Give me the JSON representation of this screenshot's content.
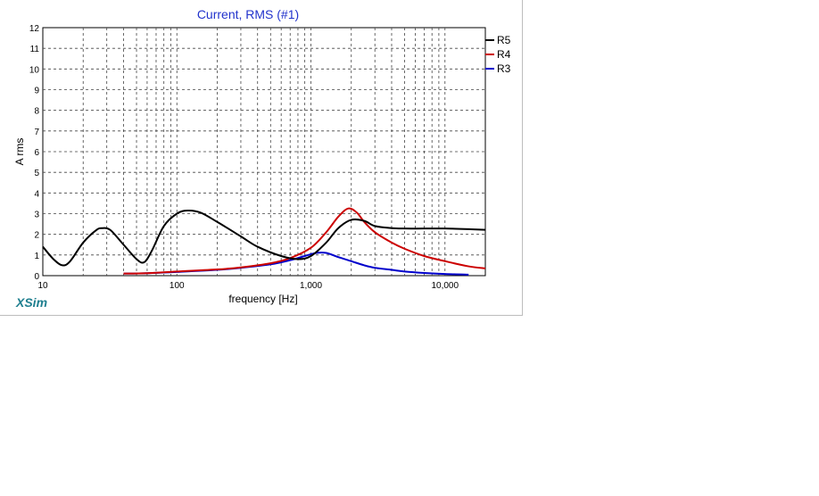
{
  "window": {
    "brand": "XSim"
  },
  "chart_data": {
    "type": "line",
    "title": "Current, RMS (#1)",
    "xlabel": "frequency [Hz]",
    "ylabel": "A rms",
    "xscale": "log",
    "xlim": [
      10,
      20000
    ],
    "ylim": [
      0,
      12
    ],
    "yticks": [
      0,
      1,
      2,
      3,
      4,
      5,
      6,
      7,
      8,
      9,
      10,
      11,
      12
    ],
    "xtick_labels": [
      {
        "value": 10,
        "label": "10"
      },
      {
        "value": 100,
        "label": "100"
      },
      {
        "value": 1000,
        "label": "1,000"
      },
      {
        "value": 10000,
        "label": "10,000"
      }
    ],
    "grid": true,
    "legend_position": "top-right",
    "colors": {
      "title": "#2233cc",
      "R5": "#000000",
      "R4": "#cc0000",
      "R3": "#0000cc"
    },
    "series": [
      {
        "name": "R5",
        "x": [
          10,
          12,
          14,
          16,
          20,
          25,
          28,
          32,
          40,
          50,
          57,
          65,
          80,
          100,
          120,
          150,
          200,
          300,
          400,
          600,
          800,
          1000,
          1300,
          1600,
          2000,
          2500,
          3000,
          4000,
          5000,
          7000,
          10000,
          15000,
          20000
        ],
        "y": [
          1.4,
          0.8,
          0.5,
          0.7,
          1.6,
          2.2,
          2.3,
          2.2,
          1.5,
          0.8,
          0.65,
          1.2,
          2.4,
          3.0,
          3.15,
          3.05,
          2.6,
          1.9,
          1.4,
          0.95,
          0.8,
          0.95,
          1.6,
          2.3,
          2.7,
          2.65,
          2.4,
          2.3,
          2.28,
          2.28,
          2.28,
          2.25,
          2.22
        ]
      },
      {
        "name": "R4",
        "x": [
          40,
          60,
          100,
          200,
          300,
          500,
          700,
          1000,
          1300,
          1600,
          1900,
          2200,
          2500,
          3000,
          4000,
          5000,
          7000,
          10000,
          15000,
          20000
        ],
        "y": [
          0.1,
          0.12,
          0.2,
          0.3,
          0.4,
          0.6,
          0.85,
          1.35,
          2.1,
          2.85,
          3.25,
          3.05,
          2.6,
          2.1,
          1.6,
          1.3,
          0.95,
          0.7,
          0.45,
          0.35
        ]
      },
      {
        "name": "R3",
        "x": [
          40,
          60,
          100,
          200,
          300,
          500,
          700,
          900,
          1100,
          1300,
          1600,
          2000,
          2500,
          3000,
          4000,
          5000,
          7000,
          10000,
          15000
        ],
        "y": [
          0.1,
          0.12,
          0.18,
          0.28,
          0.38,
          0.55,
          0.75,
          0.95,
          1.1,
          1.1,
          0.9,
          0.7,
          0.5,
          0.38,
          0.28,
          0.2,
          0.13,
          0.08,
          0.05
        ]
      }
    ]
  }
}
